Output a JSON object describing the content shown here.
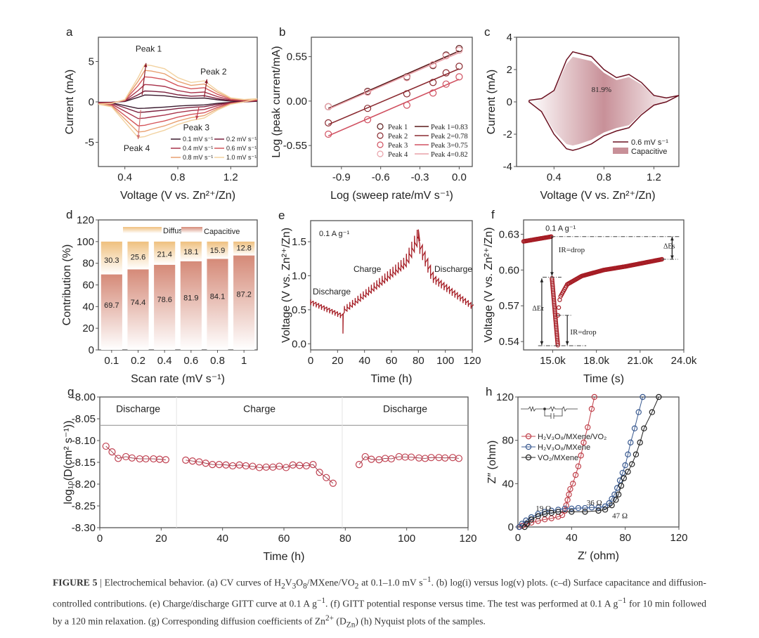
{
  "figure": {
    "caption": [
      {
        "t": "FIGURE 5",
        "s": "b"
      },
      {
        "t": "  |  Electrochemical behavior. (a) CV curves of H"
      },
      {
        "t": "2",
        "s": "sub"
      },
      {
        "t": "V"
      },
      {
        "t": "3",
        "s": "sub"
      },
      {
        "t": "O"
      },
      {
        "t": "8",
        "s": "sub"
      },
      {
        "t": "/MXene/VO"
      },
      {
        "t": "2",
        "s": "sub"
      },
      {
        "t": " at 0.1–1.0 mV s"
      },
      {
        "t": "−1",
        "s": "sup"
      },
      {
        "t": ". (b) log(i) versus log(v) plots. (c–d) Surface capacitance and diffusion-controlled contributions. (e) Charge/discharge GITT curve at 0.1 A g"
      },
      {
        "t": "−1",
        "s": "sup"
      },
      {
        "t": ". (f) GITT potential response versus time. The test was performed at 0.1 A g"
      },
      {
        "t": "−1",
        "s": "sup"
      },
      {
        "t": " for 10 min followed by a 120 min relaxation. (g) Corresponding diffusion coefficients of Zn"
      },
      {
        "t": "2+",
        "s": "sup"
      },
      {
        "t": " (D"
      },
      {
        "t": "Zn",
        "s": "sub"
      },
      {
        "t": ") (h) Nyquist plots of the samples."
      }
    ]
  },
  "colors": {
    "dark_red": "#a51c24",
    "frame": "#555555",
    "diffusion": "#efc07e",
    "capacitive": "#d58a78"
  },
  "chart_data": [
    {
      "panel": "a",
      "type": "line",
      "title": "",
      "xlabel": "Voltage (V vs. Zn²⁺/Zn)",
      "ylabel": "Current (mA)",
      "xlim": [
        0.2,
        1.4
      ],
      "ylim": [
        -8,
        8
      ],
      "xticks": [
        0.4,
        0.8,
        1.2
      ],
      "xtick_labels": [
        "0.4",
        "0.8",
        "1.2"
      ],
      "yticks": [
        -5,
        0,
        5
      ],
      "ytick_labels": [
        "-5",
        "0",
        "5"
      ],
      "voltage": [
        0.2,
        0.3,
        0.4,
        0.5,
        0.55,
        0.6,
        0.7,
        0.8,
        0.9,
        1.0,
        1.1,
        1.2,
        1.3,
        1.4
      ],
      "base_oxidation_1mV": [
        -0.3,
        -0.2,
        0.3,
        3.0,
        4.6,
        4.5,
        4.1,
        3.0,
        2.4,
        2.6,
        1.4,
        0.5,
        0.3,
        0.4
      ],
      "base_reduction_1mV": [
        -0.3,
        -0.6,
        -2.5,
        -4.4,
        -4.3,
        -4.0,
        -3.5,
        -2.8,
        -2.3,
        -2.0,
        -1.0,
        -0.3,
        0.0,
        0.4
      ],
      "series": [
        {
          "name": "0.1 mV s⁻¹",
          "peak1_mA": 0.85,
          "color": "#3a1a2e"
        },
        {
          "name": "0.2 mV s⁻¹",
          "peak1_mA": 1.35,
          "color": "#7a1f3d"
        },
        {
          "name": "0.4 mV s⁻¹",
          "peak1_mA": 2.15,
          "color": "#a8324a"
        },
        {
          "name": "0.6 mV s⁻¹",
          "peak1_mA": 3.1,
          "color": "#d4555a"
        },
        {
          "name": "0.8 mV s⁻¹",
          "peak1_mA": 3.9,
          "color": "#e8a070"
        },
        {
          "name": "1.0 mV s⁻¹",
          "peak1_mA": 4.6,
          "color": "#f2d2a0"
        }
      ],
      "annotations": [
        "Peak 1",
        "Peak 2",
        "Peak 3",
        "Peak 4"
      ],
      "legend": "bottom-right"
    },
    {
      "panel": "b",
      "type": "scatter",
      "xlabel": "Log (sweep rate/mV s⁻¹)",
      "ylabel": "Log (peak current/mA)",
      "xlim": [
        -1.13,
        0.1
      ],
      "ylim": [
        -0.81,
        0.79
      ],
      "xticks": [
        -0.9,
        -0.6,
        -0.3,
        0.0
      ],
      "xtick_labels": [
        "-0.9",
        "-0.6",
        "-0.3",
        "0.0"
      ],
      "yticks": [
        -0.55,
        0.0,
        0.55
      ],
      "ytick_labels": [
        "-0.55",
        "0.00",
        "0.55"
      ],
      "x": [
        -1.0,
        -0.7,
        -0.4,
        -0.2,
        -0.1,
        0.0
      ],
      "series": [
        {
          "name": "Peak 1",
          "fit_label": "Peak 1=0.83",
          "slope": 0.83,
          "y": [
            -0.07,
            0.12,
            0.3,
            0.44,
            0.57,
            0.65
          ],
          "fit": [
            -0.09,
            0.62
          ],
          "color": "#5a1a1a"
        },
        {
          "name": "Peak 2",
          "fit_label": "Peak 2=0.78",
          "slope": 0.78,
          "y": [
            -0.27,
            -0.09,
            0.09,
            0.23,
            0.35,
            0.43
          ],
          "fit": [
            -0.29,
            0.4
          ],
          "color": "#8a2a30"
        },
        {
          "name": "Peak 3",
          "fit_label": "Peak 3=0.75",
          "slope": 0.75,
          "y": [
            -0.41,
            -0.23,
            -0.05,
            0.1,
            0.21,
            0.3
          ],
          "fit": [
            -0.43,
            0.27
          ],
          "color": "#d05060"
        },
        {
          "name": "Peak 4",
          "fit_label": "Peak 4=0.82",
          "slope": 0.82,
          "y": [
            -0.07,
            0.11,
            0.29,
            0.45,
            0.56,
            0.63
          ],
          "fit": [
            -0.1,
            0.6
          ],
          "color": "#e8a0a8"
        }
      ],
      "legend": "bottom-right"
    },
    {
      "panel": "c",
      "type": "area",
      "xlabel": "Voltage (V vs. Zn²⁺/Zn)",
      "ylabel": "Current (mA)",
      "xlim": [
        0.1,
        1.4
      ],
      "ylim": [
        -4,
        4
      ],
      "xticks": [
        0.4,
        0.8,
        1.2
      ],
      "xtick_labels": [
        "0.4",
        "0.8",
        "1.2"
      ],
      "yticks": [
        -4,
        -2,
        0,
        2,
        4
      ],
      "ytick_labels": [
        "-4",
        "-2",
        "0",
        "2",
        "4"
      ],
      "voltage": [
        0.2,
        0.3,
        0.4,
        0.5,
        0.55,
        0.6,
        0.7,
        0.8,
        0.9,
        1.0,
        1.1,
        1.2,
        1.3,
        1.4
      ],
      "oxidation": [
        0.1,
        0.2,
        0.7,
        2.6,
        3.1,
        3.0,
        2.8,
        2.0,
        1.5,
        1.7,
        1.2,
        0.4,
        0.25,
        0.4
      ],
      "reduction": [
        0.0,
        -0.6,
        -2.0,
        -2.9,
        -3.0,
        -2.9,
        -2.6,
        -2.1,
        -1.8,
        -1.6,
        -0.8,
        -0.2,
        0.0,
        0.4
      ],
      "capacitive_fraction": 0.819,
      "capacitive_label": "81.9%",
      "series": [
        {
          "name": "0.6 mV s⁻¹",
          "color": "#6a1020"
        },
        {
          "name": "Capacitive",
          "color": "#c89098"
        }
      ],
      "legend": "bottom-right"
    },
    {
      "panel": "d",
      "type": "bar",
      "stacked": true,
      "xlabel": "Scan rate (mV s⁻¹)",
      "ylabel": "Contribution (%)",
      "ylim": [
        0,
        120
      ],
      "yticks": [
        0,
        20,
        40,
        60,
        80,
        100,
        120
      ],
      "ytick_labels": [
        "0",
        "20",
        "40",
        "60",
        "80",
        "100",
        "120"
      ],
      "categories": [
        "0.1",
        "0.2",
        "0.4",
        "0.6",
        "0.8",
        "1"
      ],
      "series": [
        {
          "name": "Capacitive",
          "values": [
            69.7,
            74.4,
            78.6,
            81.9,
            84.1,
            87.2
          ],
          "labels": [
            "69.7",
            "74.4",
            "78.6",
            "81.9",
            "84.1",
            "87.2"
          ]
        },
        {
          "name": "Diffusion",
          "values": [
            30.3,
            25.6,
            21.4,
            18.1,
            15.9,
            12.8
          ],
          "labels": [
            "30.3",
            "25.6",
            "21.4",
            "18.1",
            "15.9",
            "12.8"
          ]
        }
      ],
      "legend": "top"
    },
    {
      "panel": "e",
      "type": "line",
      "xlabel": "Time (h)",
      "ylabel": "Voltage (V vs. Zn²⁺/Zn)",
      "xlim": [
        0,
        120
      ],
      "ylim": [
        -0.09,
        1.81
      ],
      "xticks": [
        0,
        20,
        40,
        60,
        80,
        100,
        120
      ],
      "xtick_labels": [
        "0",
        "20",
        "40",
        "60",
        "80",
        "100",
        "120"
      ],
      "yticks": [
        0,
        0.5,
        1.0,
        1.5
      ],
      "ytick_labels": [
        "0.0",
        "0.5",
        "1.0",
        "1.5"
      ],
      "pulse_interval_h": 2,
      "envelope": [
        {
          "phase": "discharge",
          "t": [
            0,
            24
          ],
          "v": [
            0.63,
            0.42
          ],
          "end_min": 0.15
        },
        {
          "phase": "charge",
          "t": [
            25,
            50,
            70,
            80
          ],
          "v": [
            0.48,
            0.85,
            1.15,
            1.55
          ],
          "end_max": 1.68
        },
        {
          "phase": "discharge",
          "t": [
            81,
            90,
            120
          ],
          "v": [
            1.45,
            1.0,
            0.56
          ]
        }
      ],
      "annotations": [
        "0.1 A g⁻¹",
        "Discharge",
        "Charge",
        "Discharge"
      ]
    },
    {
      "panel": "f",
      "type": "scatter",
      "xlabel": "Time (s)",
      "ylabel": "Voltage (V vs. Zn²⁺/Zn)",
      "xlim": [
        13000,
        24000
      ],
      "ylim": [
        0.533,
        0.642
      ],
      "xticks": [
        15000,
        18000,
        21000,
        24000
      ],
      "xtick_labels": [
        "15.0k",
        "18.0k",
        "21.0k",
        "24.0k"
      ],
      "yticks": [
        0.54,
        0.57,
        0.6,
        0.63
      ],
      "ytick_labels": [
        "0.54",
        "0.57",
        "0.60",
        "0.63"
      ],
      "segments": [
        {
          "name": "rest",
          "t": [
            13000,
            14900
          ],
          "v": [
            0.624,
            0.628
          ]
        },
        {
          "name": "pulse",
          "t": [
            14950,
            15350
          ],
          "v": [
            0.593,
            0.537
          ]
        },
        {
          "name": "relaxation",
          "t": [
            15350,
            15500,
            16000,
            17000,
            18500,
            20000,
            22500
          ],
          "v": [
            0.562,
            0.577,
            0.588,
            0.595,
            0.6,
            0.603,
            0.609
          ]
        }
      ],
      "annotations": [
        "0.1 A g⁻¹",
        "IR=drop",
        "IR=drop",
        "ΔEs",
        "ΔEτ"
      ]
    },
    {
      "panel": "g",
      "type": "scatter",
      "xlabel": "Time (h)",
      "ylabel": "log₁₀(D(cm² s⁻¹))",
      "xlim": [
        0,
        120
      ],
      "ylim": [
        -8.3,
        -8.0
      ],
      "xticks": [
        0,
        20,
        40,
        60,
        80,
        100,
        120
      ],
      "xtick_labels": [
        "0",
        "20",
        "40",
        "60",
        "80",
        "100",
        "120"
      ],
      "yticks": [
        -8.3,
        -8.25,
        -8.2,
        -8.15,
        -8.1,
        -8.05,
        -8.0
      ],
      "ytick_labels": [
        "-8.30",
        "-8.25",
        "-8.20",
        "-8.15",
        "-8.10",
        "-8.05",
        "-8.00"
      ],
      "regions": [
        {
          "label": "Discharge",
          "range": [
            0,
            25
          ]
        },
        {
          "label": "Charge",
          "range": [
            25,
            79
          ]
        },
        {
          "label": "Discharge",
          "range": [
            79,
            120
          ]
        }
      ],
      "series": [
        {
          "name": "Discharge",
          "x": [
            2,
            4,
            6,
            8.5,
            10.5,
            13,
            15,
            17.5,
            19.5,
            21.5
          ],
          "y": [
            -8.113,
            -8.126,
            -8.141,
            -8.137,
            -8.14,
            -8.142,
            -8.142,
            -8.142,
            -8.143,
            -8.144
          ]
        },
        {
          "name": "Charge",
          "x": [
            28,
            30.2,
            32.4,
            34.5,
            36.7,
            38.9,
            41.1,
            43.3,
            45.5,
            47.6,
            49.8,
            52,
            54.2,
            56.4,
            58.5,
            60.7,
            62.9,
            65.1,
            67.3,
            69.5,
            71.6,
            73.8,
            76
          ],
          "y": [
            -8.145,
            -8.147,
            -8.149,
            -8.152,
            -8.155,
            -8.155,
            -8.156,
            -8.158,
            -8.156,
            -8.158,
            -8.159,
            -8.162,
            -8.161,
            -8.161,
            -8.159,
            -8.162,
            -8.156,
            -8.157,
            -8.158,
            -8.155,
            -8.173,
            -8.185,
            -8.198
          ]
        },
        {
          "name": "Discharge",
          "x": [
            84.5,
            86.5,
            88.5,
            91,
            93,
            95,
            97.5,
            99.5,
            101.5,
            104,
            106,
            108,
            110.5,
            112.5,
            115,
            117
          ],
          "y": [
            -8.155,
            -8.137,
            -8.143,
            -8.144,
            -8.141,
            -8.142,
            -8.137,
            -8.138,
            -8.138,
            -8.14,
            -8.141,
            -8.139,
            -8.139,
            -8.14,
            -8.139,
            -8.141
          ]
        }
      ]
    },
    {
      "panel": "h",
      "type": "scatter",
      "xlabel": "Z′ (ohm)",
      "ylabel": "Z″ (ohm)",
      "xlim": [
        0,
        120
      ],
      "ylim": [
        0,
        120
      ],
      "xticks": [
        0,
        40,
        80,
        120
      ],
      "xtick_labels": [
        "0",
        "40",
        "80",
        "120"
      ],
      "yticks": [
        0,
        40,
        80,
        120
      ],
      "ytick_labels": [
        "0",
        "40",
        "80",
        "120"
      ],
      "series": [
        {
          "name": "H₂V₃O₈/MXene/VO₂",
          "rct_label": "19 Ω",
          "color": "#c0404a",
          "x": [
            1,
            3,
            6,
            10,
            15,
            20,
            25,
            30,
            33,
            35,
            36,
            37,
            38,
            39,
            41,
            43,
            45,
            47,
            49,
            52,
            55,
            57
          ],
          "y": [
            0,
            1,
            2.5,
            4,
            5.5,
            7,
            8,
            9.5,
            11,
            15,
            20,
            25,
            30,
            35,
            40,
            48,
            56,
            66,
            78,
            92,
            109,
            120
          ]
        },
        {
          "name": "H₂V₃O₈/MXene",
          "rct_label": "36 Ω",
          "color": "#3a5a90",
          "x": [
            1,
            3,
            6,
            10,
            15,
            20,
            25,
            30,
            35,
            40,
            45,
            50,
            55,
            60,
            65,
            68,
            70,
            72,
            74,
            76,
            78,
            80,
            82,
            84,
            87,
            90,
            93
          ],
          "y": [
            0,
            3,
            6,
            9,
            12,
            14,
            15,
            16,
            17,
            17,
            17.5,
            17.5,
            18,
            18,
            19,
            22,
            26,
            30,
            36,
            43,
            50,
            57,
            67,
            78,
            91,
            106,
            120
          ]
        },
        {
          "name": "VO₂/MXene",
          "rct_label": "47 Ω",
          "color": "#222222",
          "x": [
            5,
            7,
            10,
            15,
            20,
            25,
            30,
            40,
            50,
            60,
            65,
            70,
            73,
            75,
            77,
            79,
            82,
            85,
            88,
            91,
            94,
            100,
            105
          ],
          "y": [
            0,
            3,
            7,
            10,
            12,
            13,
            14,
            14,
            14,
            15,
            16,
            20,
            25,
            30,
            38,
            45,
            51,
            58,
            67,
            78,
            91,
            106,
            120
          ]
        }
      ],
      "inset": "equivalent-circuit",
      "legend": "top-left"
    }
  ]
}
